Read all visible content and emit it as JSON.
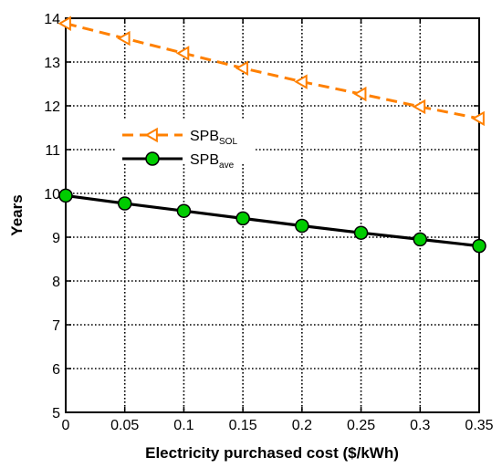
{
  "chart_data": {
    "type": "line",
    "xlabel": "Electricity purchased cost ($/kWh)",
    "ylabel": "Years",
    "x": [
      0,
      0.05,
      0.1,
      0.15,
      0.2,
      0.25,
      0.3,
      0.35
    ],
    "x_tick_labels": [
      "0",
      "0.05",
      "0.1",
      "0.15",
      "0.2",
      "0.25",
      "0.3",
      "0.35"
    ],
    "y_tick_labels": [
      "5",
      "6",
      "7",
      "8",
      "9",
      "10",
      "11",
      "12",
      "13",
      "14"
    ],
    "xlim": [
      0,
      0.35
    ],
    "ylim": [
      5,
      14
    ],
    "grid": true,
    "legend_position": "upper-left",
    "series": [
      {
        "name": "SPB_SOL",
        "label_main": "SPB",
        "label_sub": "SOL",
        "color": "#ff8000",
        "line_style": "dashed",
        "marker": "left-triangle",
        "values": [
          13.88,
          13.54,
          13.2,
          12.86,
          12.55,
          12.27,
          11.98,
          11.71
        ]
      },
      {
        "name": "SPB_ave",
        "label_main": "SPB",
        "label_sub": "ave",
        "color": "#000000",
        "marker_color": "#00cc00",
        "line_style": "solid",
        "marker": "circle",
        "values": [
          9.95,
          9.77,
          9.6,
          9.43,
          9.26,
          9.1,
          8.95,
          8.8
        ]
      }
    ]
  }
}
